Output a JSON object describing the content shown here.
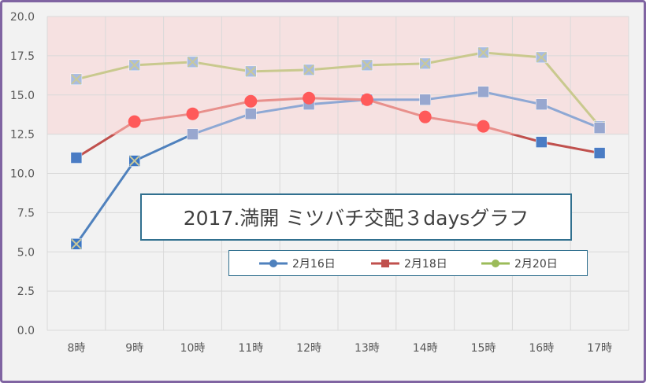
{
  "chart_data": {
    "type": "line",
    "title": "2017.満開 ミツバチ交配３daysグラフ",
    "categories": [
      "8時",
      "9時",
      "10時",
      "11時",
      "12時",
      "13時",
      "14時",
      "15時",
      "16時",
      "17時"
    ],
    "ylim": [
      0,
      20
    ],
    "yticks": [
      "0.0",
      "2.5",
      "5.0",
      "7.5",
      "10.0",
      "12.5",
      "15.0",
      "17.5",
      "20.0"
    ],
    "grid": true,
    "legend_position": "bottom-center",
    "highlight_band": {
      "from": 12.5,
      "to": 20.0,
      "color": "#f6e1e1"
    },
    "series": [
      {
        "name": "2月16日",
        "color": "#4f81bd",
        "line_color": "#8ea8d4",
        "values": [
          5.5,
          10.8,
          12.5,
          13.8,
          14.4,
          14.7,
          14.7,
          15.2,
          14.4,
          12.9
        ]
      },
      {
        "name": "2月18日",
        "color": "#c0504d",
        "line_color": "#e8908c",
        "values": [
          11.0,
          13.3,
          13.8,
          14.6,
          14.8,
          14.7,
          13.6,
          13.0,
          12.0,
          11.3
        ]
      },
      {
        "name": "2月20日",
        "color": "#9bbb59",
        "line_color": "#c9c98e",
        "values": [
          16.0,
          16.9,
          17.1,
          16.5,
          16.6,
          16.9,
          17.0,
          17.7,
          17.4,
          13.0
        ]
      }
    ]
  }
}
